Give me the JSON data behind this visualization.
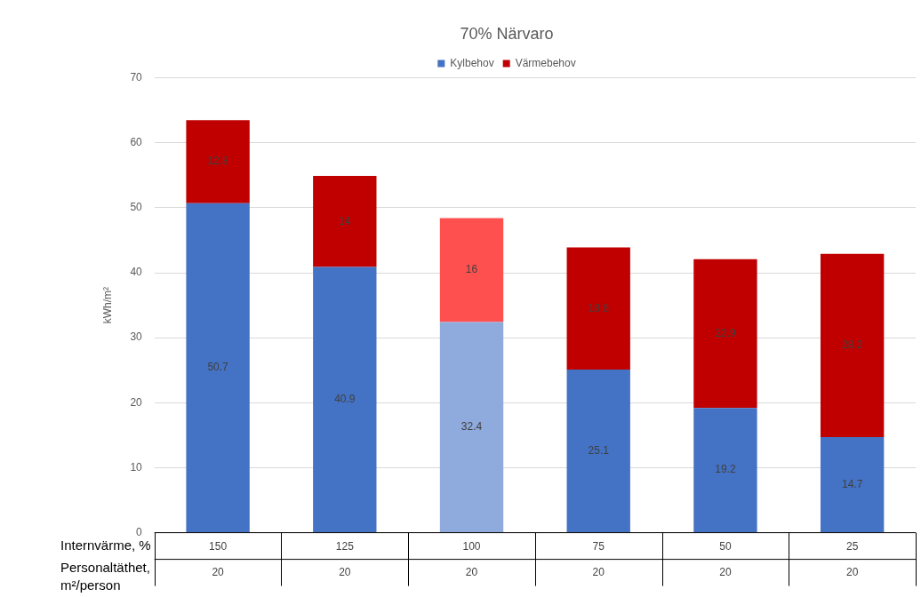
{
  "chart_data": {
    "type": "bar",
    "title": "70% Närvaro",
    "ylabel": "kWh/m²",
    "xlabel": "Internvärme, %",
    "categories": [
      "150",
      "125",
      "100",
      "75",
      "50",
      "25"
    ],
    "series": [
      {
        "name": "Kylbehov",
        "color": "#4472c4",
        "colors": [
          "#4472c4",
          "#4472c4",
          "#8faadc",
          "#4472c4",
          "#4472c4",
          "#4472c4"
        ],
        "values": [
          50.7,
          40.9,
          32.4,
          25.1,
          19.2,
          14.7
        ]
      },
      {
        "name": "Värmebehov",
        "color": "#c00000",
        "colors": [
          "#c00000",
          "#c00000",
          "#ff5050",
          "#c00000",
          "#c00000",
          "#c00000"
        ],
        "values": [
          12.8,
          14,
          16,
          18.8,
          22.9,
          28.2
        ]
      }
    ],
    "stacked": true,
    "ylim": [
      0,
      70
    ],
    "yticks": [
      0,
      10,
      20,
      30,
      40,
      50,
      60,
      70
    ],
    "grid": "y",
    "legend": "top",
    "data_labels": true,
    "annotations": [
      "Personaltäthet, m²/person",
      "20",
      "20",
      "20",
      "20",
      "20",
      "20"
    ]
  }
}
